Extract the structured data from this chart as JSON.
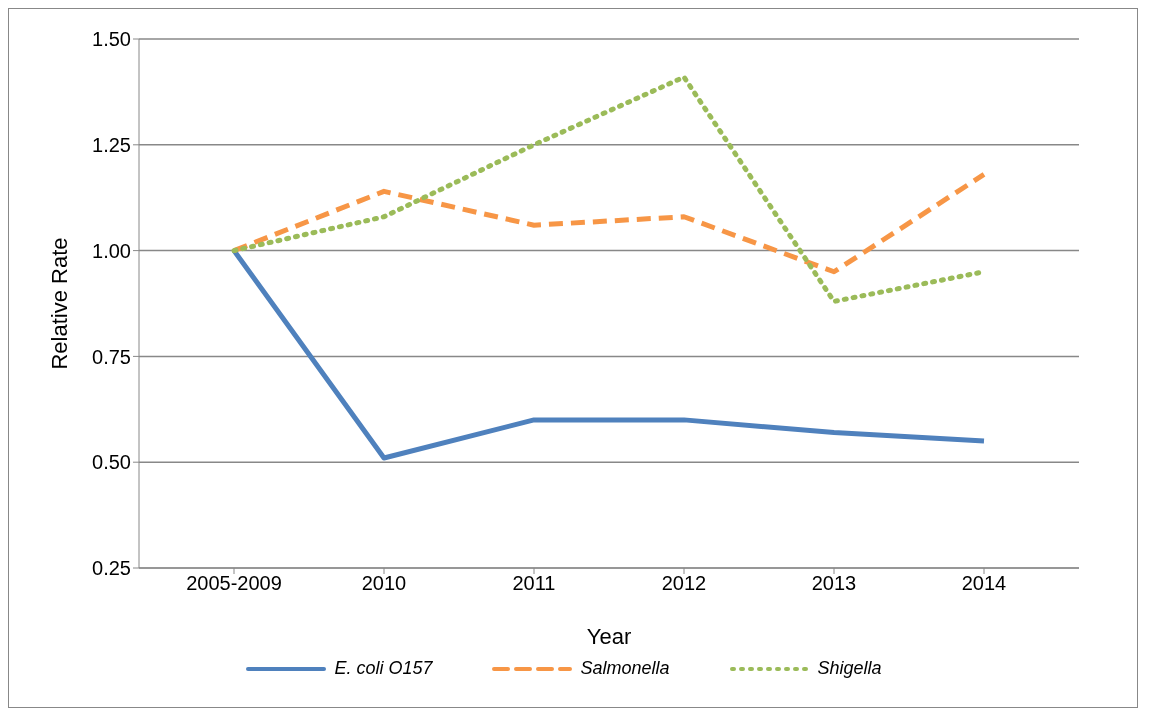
{
  "chart_data": {
    "type": "line",
    "xlabel": "Year",
    "ylabel": "Relative Rate",
    "categories": [
      "2005-2009",
      "2010",
      "2011",
      "2012",
      "2013",
      "2014"
    ],
    "series": [
      {
        "name": "E. coli O157",
        "color": "#4f81bd",
        "line_style": "solid",
        "values": [
          1.0,
          0.51,
          0.6,
          0.6,
          0.57,
          0.55
        ]
      },
      {
        "name": "Salmonella",
        "color": "#f79646",
        "line_style": "dashed",
        "values": [
          1.0,
          1.14,
          1.06,
          1.08,
          0.95,
          1.18
        ]
      },
      {
        "name": "Shigella",
        "color": "#9bbb59",
        "line_style": "dotted",
        "values": [
          1.0,
          1.08,
          1.25,
          1.41,
          0.88,
          0.95
        ]
      }
    ],
    "ylim": [
      0.25,
      1.5
    ],
    "yticks": [
      {
        "value": 0.25,
        "label": "0.25"
      },
      {
        "value": 0.5,
        "label": "0.50"
      },
      {
        "value": 0.75,
        "label": "0.75"
      },
      {
        "value": 1.0,
        "label": "1.00"
      },
      {
        "value": 1.25,
        "label": "1.25"
      },
      {
        "value": 1.5,
        "label": "1.50"
      }
    ],
    "grid": "y",
    "legend": "bottom",
    "marker": "none"
  }
}
